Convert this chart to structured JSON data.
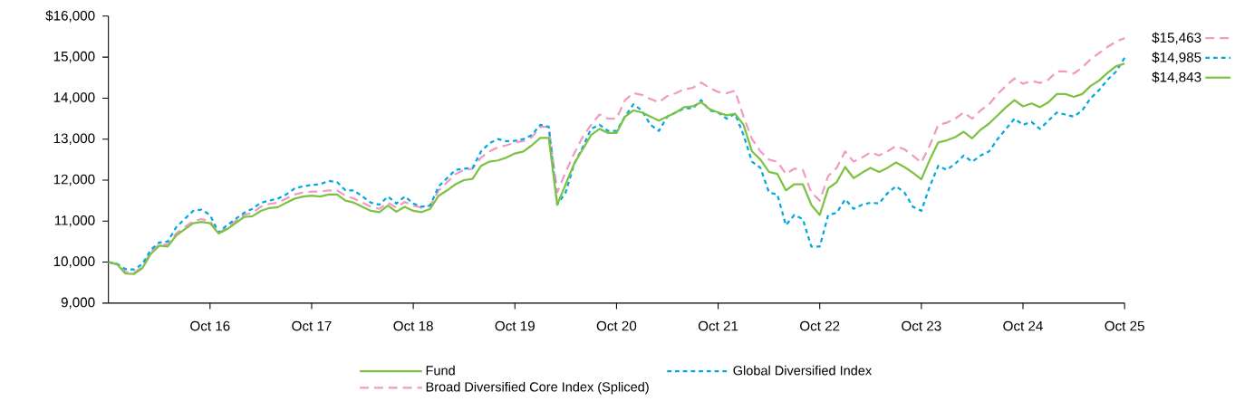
{
  "chart_data": {
    "type": "line",
    "x": [
      "2015-10",
      "2015-11",
      "2015-12",
      "2016-01",
      "2016-02",
      "2016-03",
      "2016-04",
      "2016-05",
      "2016-06",
      "2016-07",
      "2016-08",
      "2016-09",
      "2016-10",
      "2016-11",
      "2016-12",
      "2017-01",
      "2017-02",
      "2017-03",
      "2017-04",
      "2017-05",
      "2017-06",
      "2017-07",
      "2017-08",
      "2017-09",
      "2017-10",
      "2017-11",
      "2017-12",
      "2018-01",
      "2018-02",
      "2018-03",
      "2018-04",
      "2018-05",
      "2018-06",
      "2018-07",
      "2018-08",
      "2018-09",
      "2018-10",
      "2018-11",
      "2018-12",
      "2019-01",
      "2019-02",
      "2019-03",
      "2019-04",
      "2019-05",
      "2019-06",
      "2019-07",
      "2019-08",
      "2019-09",
      "2019-10",
      "2019-11",
      "2019-12",
      "2020-01",
      "2020-02",
      "2020-03",
      "2020-04",
      "2020-05",
      "2020-06",
      "2020-07",
      "2020-08",
      "2020-09",
      "2020-10",
      "2020-11",
      "2020-12",
      "2021-01",
      "2021-02",
      "2021-03",
      "2021-04",
      "2021-05",
      "2021-06",
      "2021-07",
      "2021-08",
      "2021-09",
      "2021-10",
      "2021-11",
      "2021-12",
      "2022-01",
      "2022-02",
      "2022-03",
      "2022-04",
      "2022-05",
      "2022-06",
      "2022-07",
      "2022-08",
      "2022-09",
      "2022-10",
      "2022-11",
      "2022-12",
      "2023-01",
      "2023-02",
      "2023-03",
      "2023-04",
      "2023-05",
      "2023-06",
      "2023-07",
      "2023-08",
      "2023-09",
      "2023-10",
      "2023-11",
      "2023-12",
      "2024-01",
      "2024-02",
      "2024-03",
      "2024-04",
      "2024-05",
      "2024-06",
      "2024-07",
      "2024-08",
      "2024-09",
      "2024-10",
      "2024-11",
      "2024-12",
      "2025-01",
      "2025-02",
      "2025-03",
      "2025-04",
      "2025-05",
      "2025-06",
      "2025-07",
      "2025-08",
      "2025-09",
      "2025-10"
    ],
    "series": [
      {
        "name": "Fund",
        "color": "#7dc243",
        "line_style": "solid",
        "values": [
          10000,
          9950,
          9720,
          9710,
          9850,
          10200,
          10400,
          10380,
          10650,
          10800,
          10950,
          10980,
          10950,
          10700,
          10800,
          10950,
          11100,
          11120,
          11250,
          11320,
          11340,
          11450,
          11550,
          11600,
          11620,
          11600,
          11650,
          11650,
          11500,
          11450,
          11350,
          11250,
          11220,
          11380,
          11230,
          11350,
          11250,
          11220,
          11300,
          11620,
          11750,
          11900,
          12000,
          12030,
          12350,
          12450,
          12480,
          12550,
          12650,
          12700,
          12850,
          13030,
          13030,
          11400,
          11900,
          12400,
          12750,
          13100,
          13250,
          13150,
          13150,
          13550,
          13700,
          13650,
          13550,
          13450,
          13550,
          13650,
          13780,
          13800,
          13900,
          13730,
          13650,
          13580,
          13620,
          13350,
          12700,
          12500,
          12200,
          12150,
          11750,
          11900,
          11900,
          11400,
          11150,
          11800,
          11950,
          12320,
          12050,
          12180,
          12300,
          12200,
          12300,
          12430,
          12320,
          12180,
          12020,
          12500,
          12920,
          12970,
          13050,
          13180,
          13020,
          13230,
          13380,
          13580,
          13780,
          13950,
          13800,
          13870,
          13780,
          13900,
          14100,
          14100,
          14030,
          14100,
          14300,
          14430,
          14620,
          14780,
          14843
        ]
      },
      {
        "name": "Global Diversified Index",
        "color": "#00a9e0",
        "line_style": "dotted",
        "values": [
          10000,
          9960,
          9830,
          9820,
          9950,
          10300,
          10480,
          10500,
          10850,
          11050,
          11250,
          11280,
          11150,
          10720,
          10900,
          11050,
          11200,
          11300,
          11450,
          11500,
          11550,
          11650,
          11800,
          11850,
          11880,
          11900,
          11980,
          11950,
          11750,
          11750,
          11600,
          11450,
          11400,
          11600,
          11430,
          11600,
          11430,
          11350,
          11380,
          11850,
          12050,
          12250,
          12280,
          12300,
          12700,
          12900,
          13000,
          12950,
          12960,
          13000,
          13100,
          13350,
          13300,
          11400,
          11700,
          12400,
          12800,
          13250,
          13350,
          13200,
          13200,
          13550,
          13850,
          13700,
          13350,
          13200,
          13550,
          13650,
          13750,
          13750,
          13950,
          13700,
          13650,
          13500,
          13620,
          13100,
          12450,
          12300,
          11700,
          11650,
          10900,
          11150,
          11050,
          10380,
          10380,
          11150,
          11200,
          11530,
          11300,
          11400,
          11450,
          11430,
          11680,
          11850,
          11700,
          11350,
          11250,
          11850,
          12350,
          12250,
          12400,
          12600,
          12450,
          12600,
          12700,
          13000,
          13250,
          13500,
          13350,
          13420,
          13250,
          13450,
          13650,
          13600,
          13550,
          13700,
          14000,
          14200,
          14450,
          14650,
          14985
        ]
      },
      {
        "name": "Broad Diversified Core Index (Spliced)",
        "color": "#f29ac3",
        "line_style": "dashed",
        "values": [
          10000,
          9950,
          9760,
          9740,
          9880,
          10250,
          10430,
          10430,
          10700,
          10850,
          11000,
          11050,
          11000,
          10700,
          10850,
          11000,
          11150,
          11200,
          11350,
          11420,
          11450,
          11550,
          11650,
          11700,
          11720,
          11720,
          11750,
          11750,
          11620,
          11550,
          11450,
          11350,
          11300,
          11450,
          11330,
          11470,
          11380,
          11330,
          11380,
          11750,
          11950,
          12150,
          12250,
          12280,
          12550,
          12700,
          12800,
          12850,
          12920,
          12950,
          13050,
          13300,
          13300,
          11700,
          12200,
          12650,
          13050,
          13350,
          13600,
          13500,
          13500,
          13950,
          14120,
          14080,
          13980,
          13900,
          14050,
          14120,
          14220,
          14250,
          14380,
          14250,
          14150,
          14120,
          14180,
          13550,
          13000,
          12700,
          12500,
          12450,
          12150,
          12280,
          12250,
          11700,
          11500,
          12100,
          12300,
          12700,
          12450,
          12550,
          12680,
          12600,
          12700,
          12830,
          12750,
          12600,
          12430,
          12850,
          13350,
          13400,
          13500,
          13650,
          13500,
          13700,
          13850,
          14100,
          14300,
          14480,
          14350,
          14420,
          14370,
          14450,
          14650,
          14650,
          14600,
          14750,
          14950,
          15100,
          15250,
          15380,
          15463
        ]
      }
    ],
    "xlim": [
      "2015-10",
      "2025-10"
    ],
    "xticks": [
      {
        "value": "2016-10",
        "label": "Oct 16"
      },
      {
        "value": "2017-10",
        "label": "Oct 17"
      },
      {
        "value": "2018-10",
        "label": "Oct 18"
      },
      {
        "value": "2019-10",
        "label": "Oct 19"
      },
      {
        "value": "2020-10",
        "label": "Oct 20"
      },
      {
        "value": "2021-10",
        "label": "Oct 21"
      },
      {
        "value": "2022-10",
        "label": "Oct 22"
      },
      {
        "value": "2023-10",
        "label": "Oct 23"
      },
      {
        "value": "2024-10",
        "label": "Oct 24"
      },
      {
        "value": "2025-10",
        "label": "Oct 25"
      }
    ],
    "ylim": [
      9000,
      16000
    ],
    "yticks": [
      {
        "value": 9000,
        "label": "9,000"
      },
      {
        "value": 10000,
        "label": "10,000"
      },
      {
        "value": 11000,
        "label": "11,000"
      },
      {
        "value": 12000,
        "label": "12,000"
      },
      {
        "value": 13000,
        "label": "13,000"
      },
      {
        "value": 14000,
        "label": "14,000"
      },
      {
        "value": 15000,
        "label": "15,000"
      },
      {
        "value": 16000,
        "label": "$16,000"
      }
    ],
    "annotations": [
      {
        "text": "$15,463",
        "x": "2025-10",
        "y": 15463
      },
      {
        "text": "$14,985",
        "x": "2025-10",
        "y": 14985
      },
      {
        "text": "$14,843",
        "x": "2025-10",
        "y": 14843
      }
    ],
    "legend": "bottom",
    "marker": "none",
    "grid": false
  }
}
